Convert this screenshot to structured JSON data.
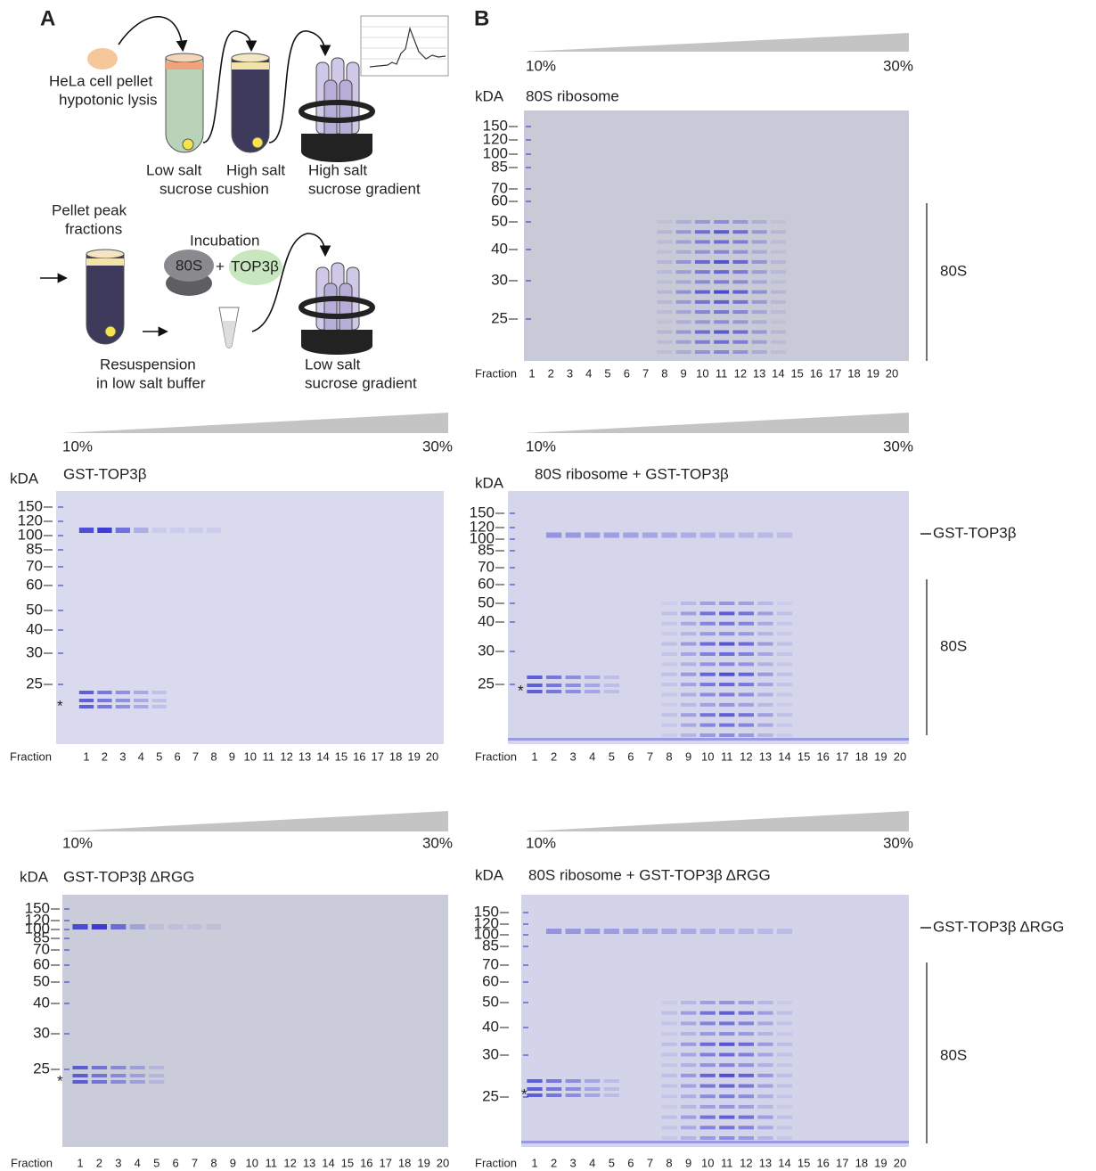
{
  "panel_a": {
    "label": "A",
    "lysis": [
      "HeLa cell pellet",
      "hypotonic lysis"
    ],
    "cushion": [
      "Low salt",
      "sucrose cushion"
    ],
    "high_salt_tube": "High salt",
    "gradient1": [
      "High salt",
      "sucrose gradient"
    ],
    "pellet": [
      "Pellet peak",
      "fractions"
    ],
    "incubation": "Incubation",
    "ribosome": "80S",
    "plus": "+",
    "protein": "TOP3β",
    "resuspension": [
      "Resuspension",
      "in low salt buffer"
    ],
    "gradient2": [
      "Low salt",
      "sucrose gradient"
    ]
  },
  "panel_b": {
    "label": "B"
  },
  "gels": [
    {
      "low": "10%",
      "high": "30%",
      "unit": "kDA",
      "title": "80S ribosome",
      "markers": [
        150,
        120,
        100,
        85,
        70,
        60,
        50,
        40,
        30,
        25
      ],
      "axis": "Fraction",
      "fractions": [
        1,
        2,
        3,
        4,
        5,
        6,
        7,
        8,
        9,
        10,
        11,
        12,
        13,
        14,
        15,
        16,
        17,
        18,
        19,
        20
      ],
      "complex": "80S"
    },
    {
      "low": "10%",
      "high": "30%",
      "unit": "kDA",
      "title": "GST-TOP3β",
      "markers": [
        150,
        120,
        100,
        85,
        70,
        60,
        50,
        40,
        30,
        25
      ],
      "axis": "Fraction",
      "fractions": [
        1,
        2,
        3,
        4,
        5,
        6,
        7,
        8,
        9,
        10,
        11,
        12,
        13,
        14,
        15,
        16,
        17,
        18,
        19,
        20
      ],
      "star": "*"
    },
    {
      "low": "10%",
      "high": "30%",
      "unit": "kDA",
      "title": "80S ribosome + GST-TOP3β",
      "markers": [
        150,
        120,
        100,
        85,
        70,
        60,
        50,
        40,
        30,
        25
      ],
      "axis": "Fraction",
      "fractions": [
        1,
        2,
        3,
        4,
        5,
        6,
        7,
        8,
        9,
        10,
        11,
        12,
        13,
        14,
        15,
        16,
        17,
        18,
        19,
        20
      ],
      "star": "*",
      "band_label": "GST-TOP3β",
      "complex": "80S"
    },
    {
      "low": "10%",
      "high": "30%",
      "unit": "kDA",
      "title": "GST-TOP3β ΔRGG",
      "markers": [
        150,
        120,
        100,
        85,
        70,
        60,
        50,
        40,
        30,
        25
      ],
      "axis": "Fraction",
      "fractions": [
        1,
        2,
        3,
        4,
        5,
        6,
        7,
        8,
        9,
        10,
        11,
        12,
        13,
        14,
        15,
        16,
        17,
        18,
        19,
        20
      ],
      "star": "*"
    },
    {
      "low": "10%",
      "high": "30%",
      "unit": "kDA",
      "title": "80S ribosome + GST-TOP3β ΔRGG",
      "markers": [
        150,
        120,
        100,
        85,
        70,
        60,
        50,
        40,
        30,
        25
      ],
      "axis": "Fraction",
      "fractions": [
        1,
        2,
        3,
        4,
        5,
        6,
        7,
        8,
        9,
        10,
        11,
        12,
        13,
        14,
        15,
        16,
        17,
        18,
        19,
        20
      ],
      "star": "*",
      "band_label": "GST-TOP3β ΔRGG",
      "complex": "80S"
    }
  ]
}
